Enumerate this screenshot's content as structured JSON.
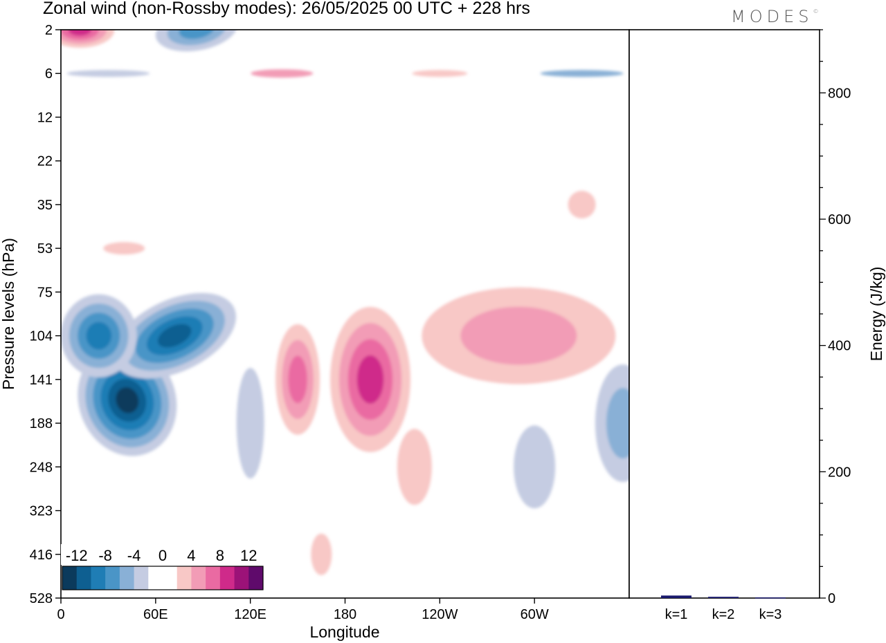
{
  "header": {
    "title": "Zonal wind (non-Rossby modes):  26/05/2025  00 UTC  + 228 hrs",
    "logo": "MODES",
    "logo_mark": "©"
  },
  "chart_data": [
    {
      "type": "heatmap",
      "title": "Zonal wind (non-Rossby modes):  26/05/2025  00 UTC  + 228 hrs",
      "xlabel": "Longitude",
      "ylabel": "Pressure levels (hPa)",
      "xticks": [
        "0",
        "60E",
        "120E",
        "180",
        "120W",
        "60W"
      ],
      "xtick_degrees": [
        0,
        60,
        120,
        180,
        240,
        300
      ],
      "xlim": [
        0,
        360
      ],
      "yticks": [
        "2",
        "6",
        "12",
        "22",
        "35",
        "53",
        "75",
        "104",
        "141",
        "188",
        "248",
        "323",
        "416",
        "528"
      ],
      "colorbar": {
        "labels": [
          "-12",
          "-8",
          "-4",
          "0",
          "4",
          "8",
          "12"
        ],
        "levels": [
          -14,
          -12,
          -10,
          -8,
          -6,
          -4,
          -2,
          0,
          2,
          4,
          6,
          8,
          10,
          12,
          14
        ],
        "colors": [
          "#0b3a5c",
          "#0e5f91",
          "#1f7db5",
          "#4a95c7",
          "#89b0d6",
          "#c5cce2",
          "#ffffff",
          "#ffffff",
          "#f8c8c6",
          "#f29cb6",
          "#ea6aa2",
          "#cf2a8a",
          "#9c1278",
          "#5f0a6b"
        ]
      },
      "features": [
        {
          "lon": 42,
          "level": "141",
          "value": -13
        },
        {
          "lon": 72,
          "level": "104",
          "value": -12
        },
        {
          "lon": 24,
          "level": "104",
          "value": -10
        },
        {
          "lon": 150,
          "level": "141",
          "value": 7
        },
        {
          "lon": 196,
          "level": "141",
          "value": 10
        },
        {
          "lon": 290,
          "level": "104",
          "value": 6
        },
        {
          "lon": 12,
          "level": "2",
          "value": 9
        },
        {
          "lon": 86,
          "level": "2",
          "value": -7
        },
        {
          "lon": 356,
          "level": "188",
          "value": -5
        }
      ]
    },
    {
      "type": "bar",
      "categories": [
        "k=1",
        "k=2",
        "k=3"
      ],
      "values": [
        4,
        2,
        1
      ],
      "ylabel": "Energy (J/kg)",
      "ylim": [
        0,
        900
      ],
      "yticks": [
        0,
        200,
        400,
        600,
        800
      ],
      "bar_color": "#1a1a6e"
    }
  ]
}
